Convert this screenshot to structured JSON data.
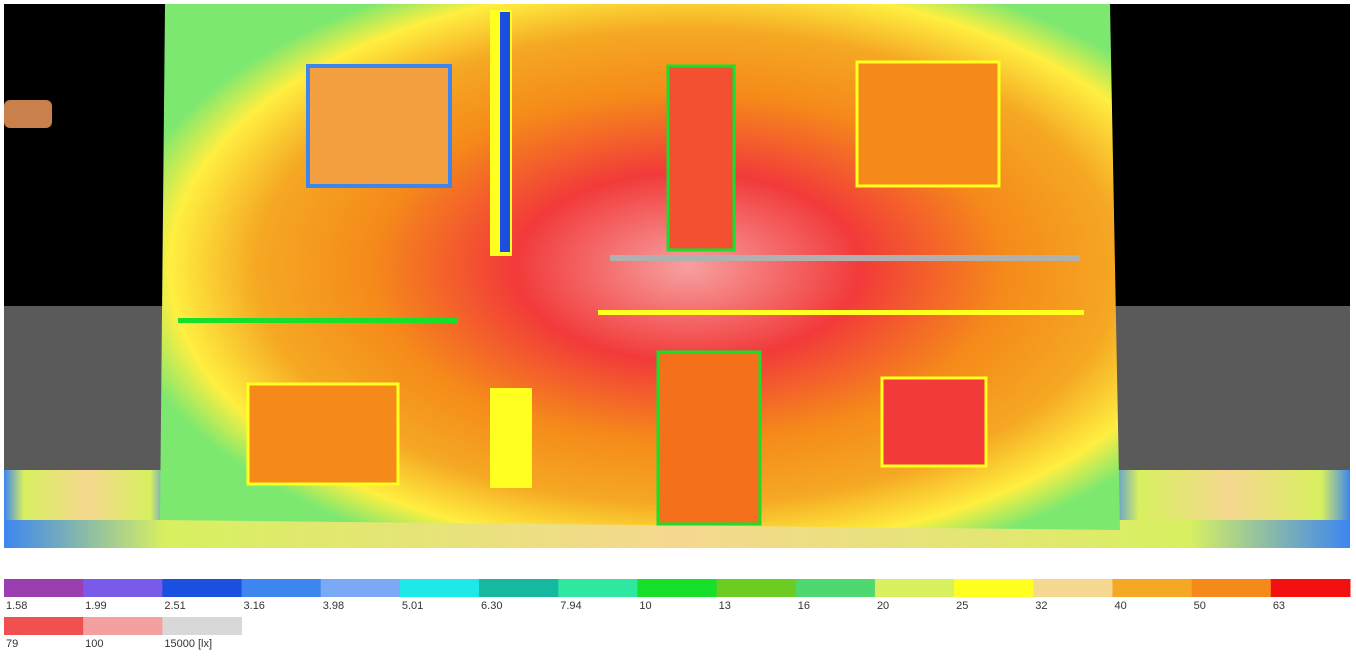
{
  "legend": {
    "entries": [
      {
        "label": "1.58",
        "color": "#9b3fb0"
      },
      {
        "label": "1.99",
        "color": "#7a5ae8"
      },
      {
        "label": "2.51",
        "color": "#1a4fe0"
      },
      {
        "label": "3.16",
        "color": "#3d86f0"
      },
      {
        "label": "3.98",
        "color": "#7aaaf5"
      },
      {
        "label": "5.01",
        "color": "#1ee8e8"
      },
      {
        "label": "6.30",
        "color": "#17b8a0"
      },
      {
        "label": "7.94",
        "color": "#2ee8a0"
      },
      {
        "label": "10",
        "color": "#17e02a"
      },
      {
        "label": "13",
        "color": "#6ccc22"
      },
      {
        "label": "16",
        "color": "#4fd870"
      },
      {
        "label": "20",
        "color": "#d8f060"
      },
      {
        "label": "25",
        "color": "#ffff20"
      },
      {
        "label": "32",
        "color": "#f5d890"
      },
      {
        "label": "40",
        "color": "#f5a823"
      },
      {
        "label": "50",
        "color": "#f58a1a"
      },
      {
        "label": "63",
        "color": "#f51010"
      },
      {
        "label": "79",
        "color": "#f05050"
      },
      {
        "label": "100",
        "color": "#f5a0a0"
      },
      {
        "label": "15000 [lx]",
        "color": "#d8d8d8"
      }
    ]
  }
}
